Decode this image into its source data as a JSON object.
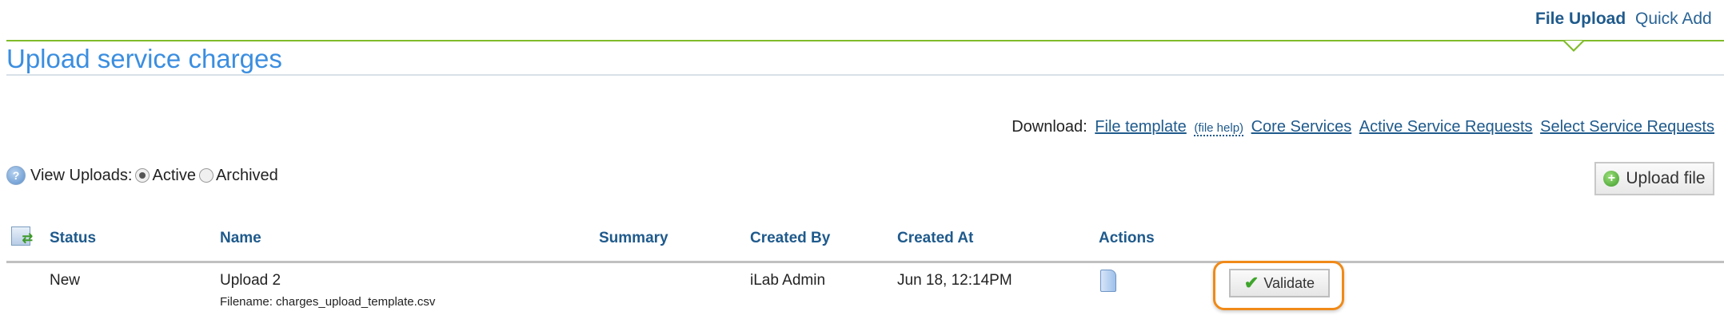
{
  "nav": {
    "tabs": [
      {
        "label": "File Upload",
        "active": true
      },
      {
        "label": "Quick Add",
        "active": false
      }
    ]
  },
  "page": {
    "title": "Upload service charges"
  },
  "download": {
    "label": "Download:",
    "links": [
      "File template",
      "(file help)",
      "Core Services",
      "Active Service Requests",
      "Select Service Requests"
    ]
  },
  "view_uploads": {
    "label": "View Uploads:",
    "options": [
      "Active",
      "Archived"
    ],
    "selected": "Active"
  },
  "upload_button": {
    "label": "Upload file"
  },
  "table": {
    "headers": [
      "Status",
      "Name",
      "Summary",
      "Created By",
      "Created At",
      "Actions"
    ],
    "rows": [
      {
        "status": "New",
        "name": "Upload 2",
        "filename": "Filename: charges_upload_template.csv",
        "summary": "",
        "created_by": "iLab Admin",
        "created_at": "Jun 18, 12:14PM",
        "action_label": "Validate"
      }
    ]
  },
  "colors": {
    "accent_green": "#80bb2a",
    "title_blue": "#3b8ee0",
    "link_blue": "#1f5a8c",
    "highlight_orange": "#f08a18"
  }
}
